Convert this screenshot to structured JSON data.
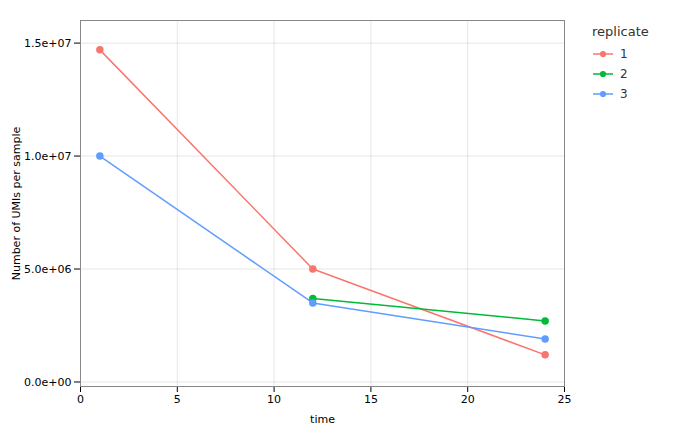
{
  "chart_data": {
    "type": "line",
    "xlabel": "time",
    "ylabel": "Number of UMIs per sample",
    "legend_title": "replicate",
    "series": [
      {
        "name": "1",
        "color": "#F8766D",
        "x": [
          1,
          12,
          24
        ],
        "values": [
          14700000,
          5000000,
          1200000
        ]
      },
      {
        "name": "2",
        "color": "#00BA38",
        "x": [
          12,
          24
        ],
        "values": [
          3700000,
          2700000
        ]
      },
      {
        "name": "3",
        "color": "#619CFF",
        "x": [
          1,
          12,
          24
        ],
        "values": [
          10000000,
          3500000,
          1900000
        ]
      }
    ],
    "xlim": [
      0,
      25
    ],
    "xticks": [
      0,
      5,
      10,
      15,
      20,
      25
    ],
    "ylim": [
      -200000,
      16000000
    ],
    "yticks": [
      {
        "value": 0,
        "label": "0.0e+00"
      },
      {
        "value": 5000000,
        "label": "5.0e+06"
      },
      {
        "value": 10000000,
        "label": "1.0e+07"
      },
      {
        "value": 15000000,
        "label": "1.5e+07"
      }
    ],
    "grid": true,
    "legend": "right",
    "marker": "circle"
  }
}
